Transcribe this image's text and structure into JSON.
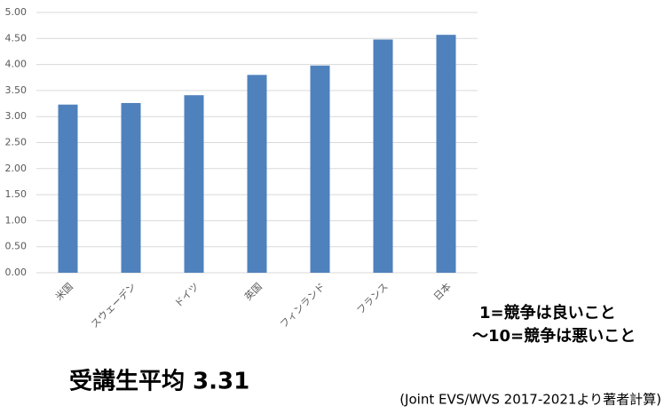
{
  "chart_data": {
    "type": "bar",
    "categories": [
      "米国",
      "スウェーデン",
      "ドイツ",
      "英国",
      "フィンランド",
      "フランス",
      "日本"
    ],
    "values": [
      3.23,
      3.26,
      3.41,
      3.8,
      3.98,
      4.48,
      4.57
    ],
    "color": "#4f81bd",
    "ylim": [
      0,
      5
    ],
    "yticks": [
      {
        "value": 0,
        "label": "0.00"
      },
      {
        "value": 0.5,
        "label": "0.50"
      },
      {
        "value": 1,
        "label": "1.00"
      },
      {
        "value": 1.5,
        "label": "1.50"
      },
      {
        "value": 2,
        "label": "2.00"
      },
      {
        "value": 2.5,
        "label": "2.50"
      },
      {
        "value": 3,
        "label": "3.00"
      },
      {
        "value": 3.5,
        "label": "3.50"
      },
      {
        "value": 4,
        "label": "4.00"
      },
      {
        "value": 4.5,
        "label": "4.50"
      },
      {
        "value": 5,
        "label": "5.00"
      }
    ],
    "grid": true,
    "annotations": [
      "1=競争は良いこと",
      "～10=競争は悪いこと",
      "受講生平均 3.31",
      "(Joint EVS/WVS 2017-2021より著者計算)"
    ]
  }
}
